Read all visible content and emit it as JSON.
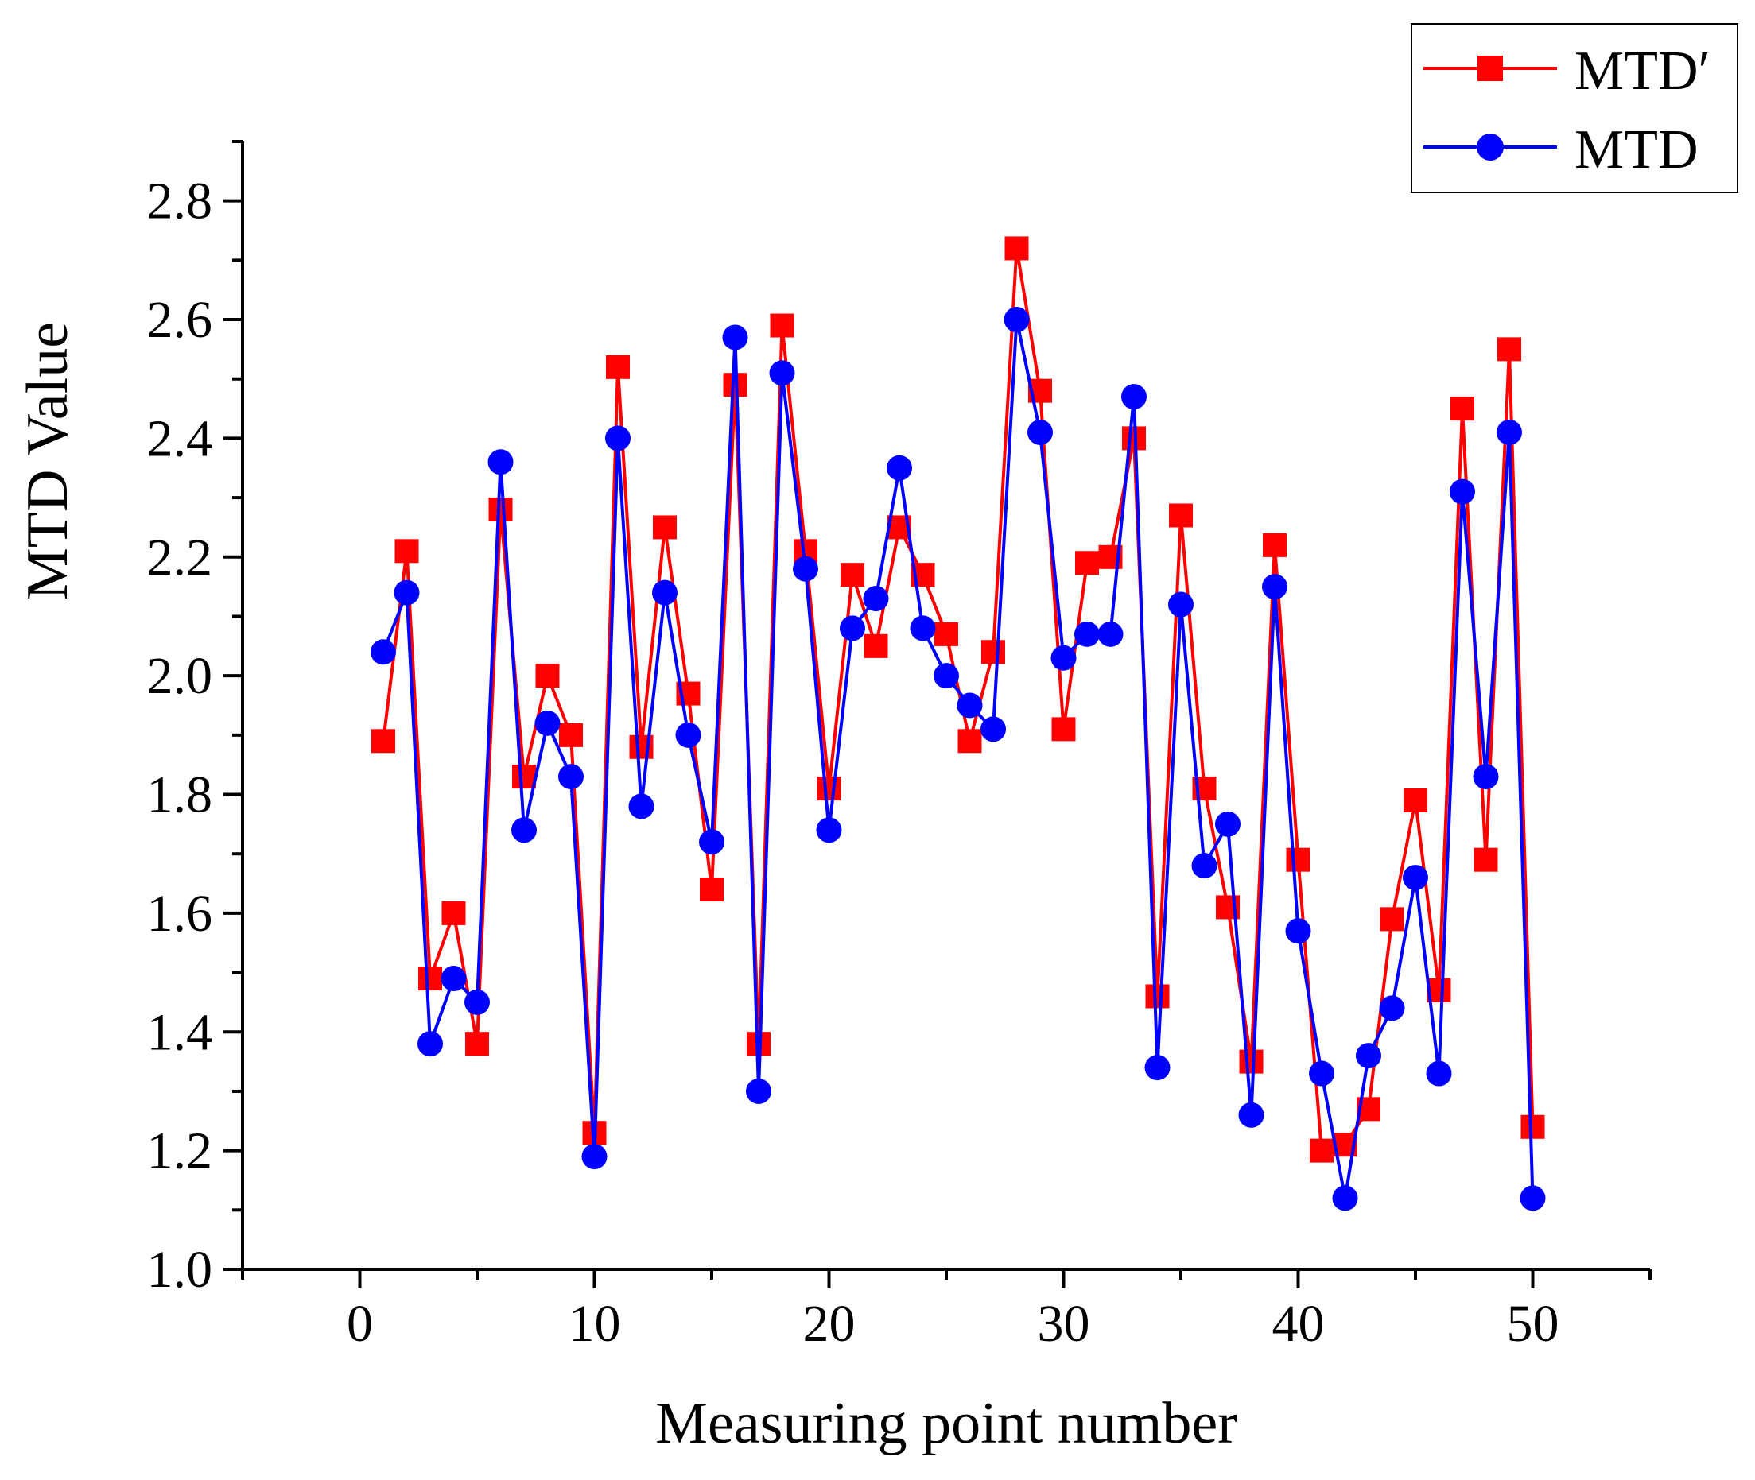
{
  "chart_data": {
    "type": "line",
    "xlabel": "Measuring point number",
    "ylabel": "MTD Value",
    "xlim": [
      -5,
      55
    ],
    "ylim": [
      1.0,
      2.9
    ],
    "xticks": [
      "0",
      "10",
      "20",
      "30",
      "40",
      "50"
    ],
    "yticks": [
      "1.0",
      "1.2",
      "1.4",
      "1.6",
      "1.8",
      "2.0",
      "2.2",
      "2.4",
      "2.6",
      "2.8"
    ],
    "legend_position": "top-right",
    "x": [
      1,
      2,
      3,
      4,
      5,
      6,
      7,
      8,
      9,
      10,
      11,
      12,
      13,
      14,
      15,
      16,
      17,
      18,
      19,
      20,
      21,
      22,
      23,
      24,
      25,
      26,
      27,
      28,
      29,
      30,
      31,
      32,
      33,
      34,
      35,
      36,
      37,
      38,
      39,
      40,
      41,
      42,
      43,
      44,
      45,
      46,
      47,
      48,
      49,
      50
    ],
    "series": [
      {
        "name": "MTD′",
        "color": "#ff0000",
        "marker": "square",
        "values": [
          1.89,
          2.21,
          1.49,
          1.6,
          1.38,
          2.28,
          1.83,
          2.0,
          1.9,
          1.23,
          2.52,
          1.88,
          2.25,
          1.97,
          1.64,
          2.49,
          1.38,
          2.59,
          2.21,
          1.81,
          2.17,
          2.05,
          2.25,
          2.17,
          2.07,
          1.89,
          2.04,
          2.72,
          2.48,
          1.91,
          2.19,
          2.2,
          2.4,
          1.46,
          2.27,
          1.81,
          1.61,
          1.35,
          2.22,
          1.69,
          1.2,
          1.21,
          1.27,
          1.59,
          1.79,
          1.47,
          2.45,
          1.69,
          2.55,
          1.24
        ]
      },
      {
        "name": "MTD",
        "color": "#0000ff",
        "marker": "circle",
        "values": [
          2.04,
          2.14,
          1.38,
          1.49,
          1.45,
          2.36,
          1.74,
          1.92,
          1.83,
          1.19,
          2.4,
          1.78,
          2.14,
          1.9,
          1.72,
          2.57,
          1.3,
          2.51,
          2.18,
          1.74,
          2.08,
          2.13,
          2.35,
          2.08,
          2.0,
          1.95,
          1.91,
          2.6,
          2.41,
          2.03,
          2.07,
          2.07,
          2.47,
          1.34,
          2.12,
          1.68,
          1.75,
          1.26,
          2.15,
          1.57,
          1.33,
          1.12,
          1.36,
          1.44,
          1.66,
          1.33,
          2.31,
          1.83,
          2.41,
          1.12
        ]
      }
    ]
  }
}
